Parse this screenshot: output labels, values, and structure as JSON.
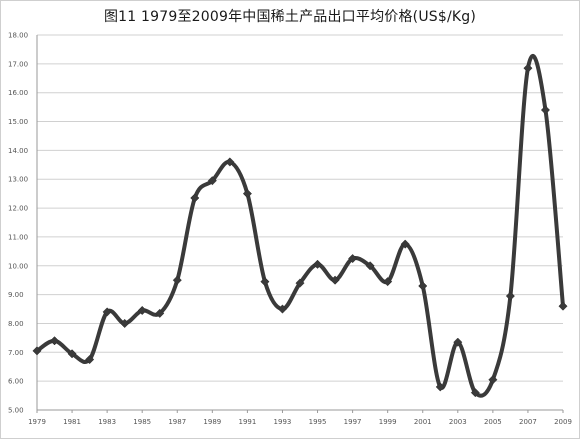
{
  "chart_data": {
    "type": "line",
    "title": "图11  1979至2009年中国稀土产品出口平均价格(US$/Kg)",
    "xlabel": "",
    "ylabel": "",
    "ylim": [
      5.0,
      18.0
    ],
    "yticks": [
      "5.00",
      "6.00",
      "7.00",
      "8.00",
      "9.00",
      "10.00",
      "11.00",
      "12.00",
      "13.00",
      "14.00",
      "15.00",
      "16.00",
      "17.00",
      "18.00"
    ],
    "xtick_labels": [
      "1979",
      "1981",
      "1983",
      "1985",
      "1987",
      "1989",
      "1991",
      "1993",
      "1995",
      "1997",
      "1999",
      "2001",
      "2003",
      "2005",
      "2007",
      "2009"
    ],
    "grid": "horizontal",
    "legend": "none",
    "series_color": "#3a3a3a",
    "x": [
      1979,
      1980,
      1981,
      1982,
      1983,
      1984,
      1985,
      1986,
      1987,
      1988,
      1989,
      1990,
      1991,
      1992,
      1993,
      1994,
      1995,
      1996,
      1997,
      1998,
      1999,
      2000,
      2001,
      2002,
      2003,
      2004,
      2005,
      2006,
      2007,
      2008,
      2009
    ],
    "values": [
      7.05,
      7.4,
      6.95,
      6.75,
      8.4,
      8.0,
      8.45,
      8.35,
      9.5,
      12.35,
      12.95,
      13.6,
      12.5,
      9.45,
      8.5,
      9.4,
      10.05,
      9.5,
      10.25,
      10.0,
      9.45,
      10.75,
      9.3,
      5.8,
      7.35,
      5.6,
      6.05,
      8.95,
      16.85,
      15.4,
      8.6
    ]
  }
}
